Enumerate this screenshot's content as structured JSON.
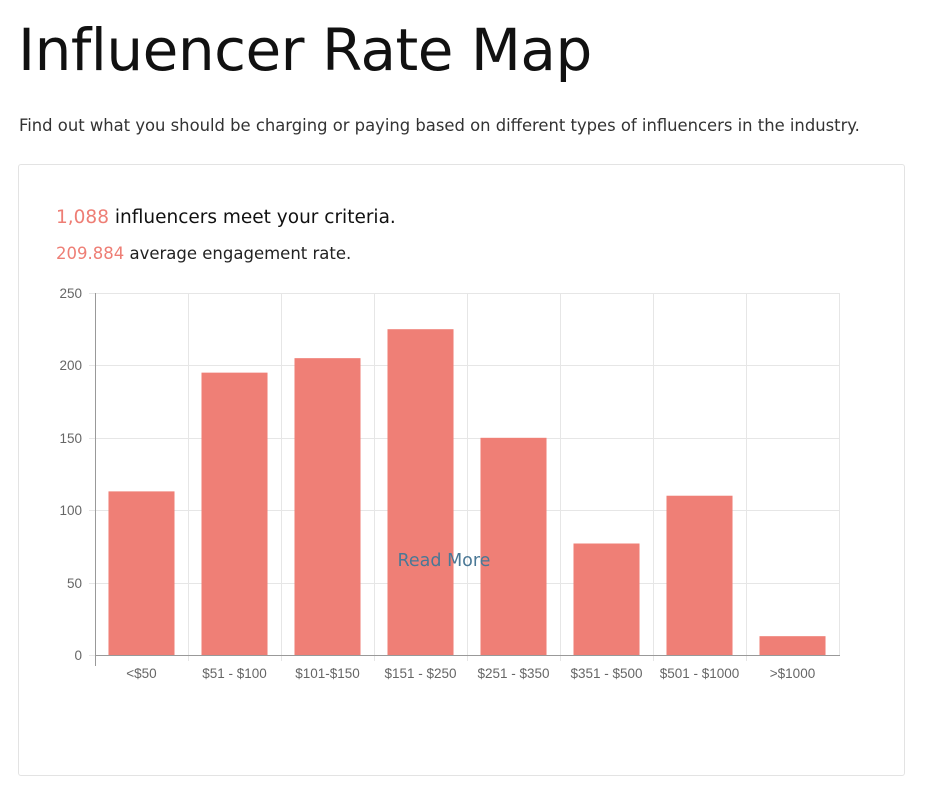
{
  "page": {
    "title": "Influencer Rate Map",
    "subtitle": "Find out what you should be charging or paying based on different types of influencers in the industry."
  },
  "summary": {
    "count": "1,088",
    "count_text": " influencers meet your criteria.",
    "rate": "209.884",
    "rate_text": " average engagement rate."
  },
  "colors": {
    "accent": "#ee7e75",
    "bar": "#ef7f76",
    "link": "#4a7896",
    "grid": "#e6e6e6",
    "axis": "#999999",
    "tick_text": "#666666"
  },
  "read_more": "Read More",
  "chart_data": {
    "type": "bar",
    "categories": [
      "<$50",
      "$51 - $100",
      "$101-$150",
      "$151 - $250",
      "$251 - $350",
      "$351 - $500",
      "$501 - $1000",
      ">$1000"
    ],
    "values": [
      113,
      195,
      205,
      225,
      150,
      77,
      110,
      13
    ],
    "title": "",
    "xlabel": "",
    "ylabel": "",
    "ylim": [
      0,
      250
    ],
    "yticks": [
      0,
      50,
      100,
      150,
      200,
      250
    ],
    "grid": true,
    "legend": "none"
  }
}
